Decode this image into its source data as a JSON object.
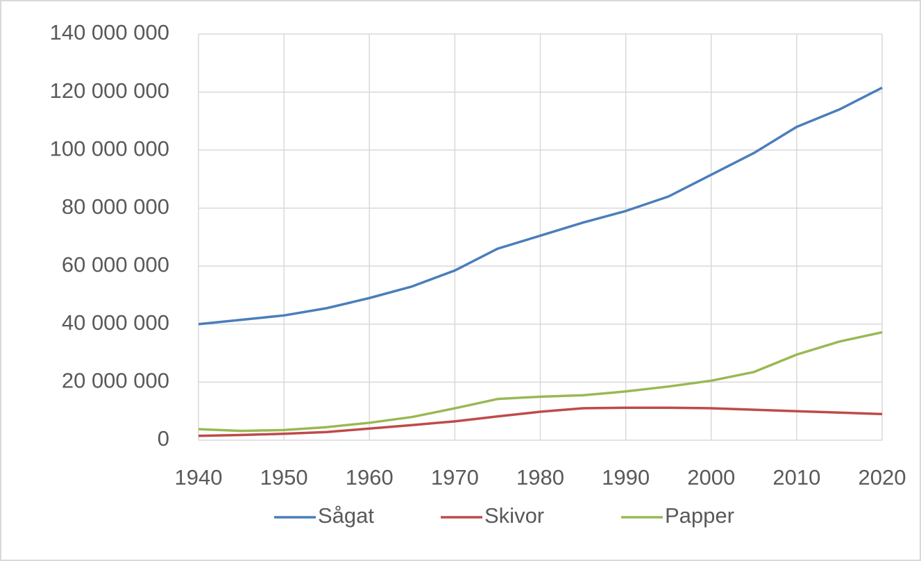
{
  "chart_data": {
    "type": "line",
    "x": [
      1940,
      1945,
      1950,
      1955,
      1960,
      1965,
      1970,
      1975,
      1980,
      1985,
      1990,
      1995,
      2000,
      2005,
      2010,
      2015,
      2020
    ],
    "series": [
      {
        "name": "Sågat",
        "color": "#4a7ebb",
        "values": [
          40000000,
          41500000,
          43000000,
          45500000,
          49000000,
          53000000,
          58500000,
          66000000,
          70500000,
          75000000,
          79000000,
          84000000,
          91500000,
          99000000,
          108000000,
          114000000,
          121500000
        ]
      },
      {
        "name": "Skivor",
        "color": "#be4b48",
        "values": [
          1500000,
          1800000,
          2200000,
          2800000,
          4000000,
          5200000,
          6500000,
          8200000,
          9800000,
          11000000,
          11200000,
          11200000,
          11000000,
          10500000,
          10000000,
          9500000,
          9000000
        ]
      },
      {
        "name": "Papper",
        "color": "#98b954",
        "values": [
          3800000,
          3200000,
          3500000,
          4500000,
          6000000,
          8000000,
          11000000,
          14200000,
          15000000,
          15500000,
          16800000,
          18500000,
          20500000,
          23500000,
          29500000,
          34000000,
          37200000
        ]
      }
    ],
    "xlim": [
      1940,
      2020
    ],
    "xticks": [
      1940,
      1950,
      1960,
      1970,
      1980,
      1990,
      2000,
      2010,
      2020
    ],
    "ylim": [
      0,
      140000000
    ],
    "yticks": [
      0,
      {
        "value": 20000000,
        "label": "20 000 000"
      },
      {
        "value": 40000000,
        "label": "40 000 000"
      },
      {
        "value": 60000000,
        "label": "60 000 000"
      },
      {
        "value": 80000000,
        "label": "80 000 000"
      },
      {
        "value": 100000000,
        "label": "100 000 000"
      },
      {
        "value": 120000000,
        "label": "120 000 000"
      },
      {
        "value": 140000000,
        "label": "140 000 000"
      }
    ],
    "grid": true,
    "legend": "bottom"
  }
}
